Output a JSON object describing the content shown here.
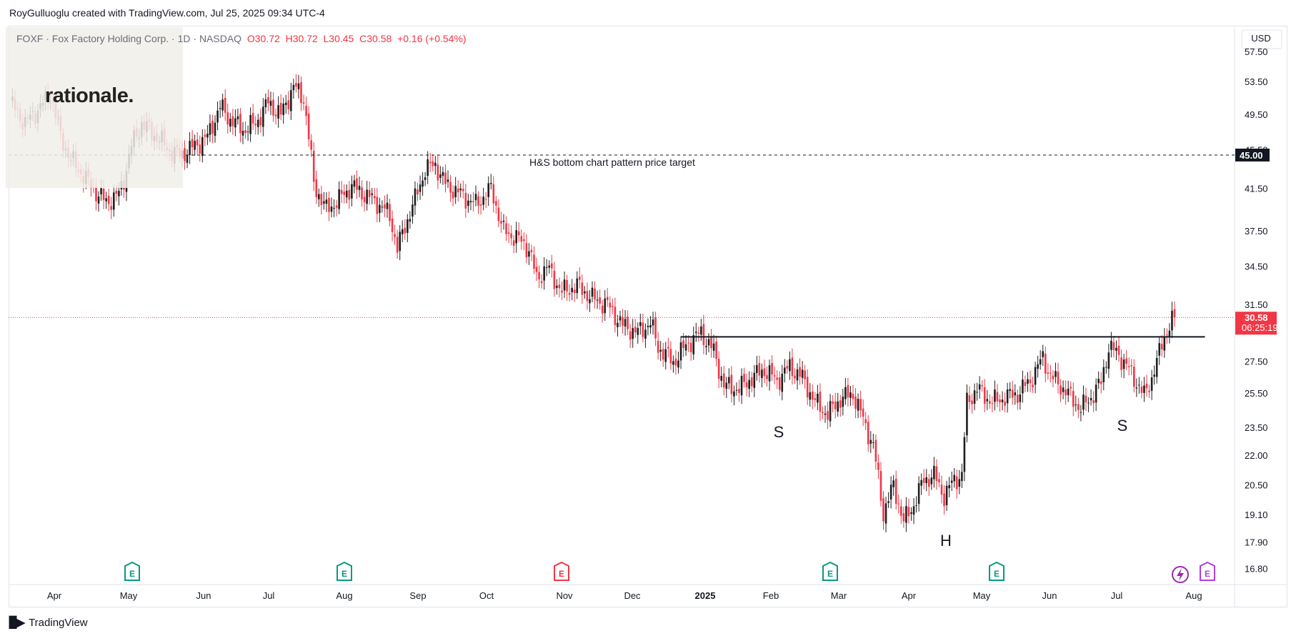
{
  "header": {
    "attribution": "RoyGulluoglu created with TradingView.com, Jul 25, 2025 09:34 UTC-4"
  },
  "legend": {
    "symbol": "FOXF · Fox Factory Holding Corp. · 1D · NASDAQ",
    "open": "O30.72",
    "high": "H30.72",
    "low": "L30.45",
    "close": "C30.58",
    "change": "+0.16 (+0.54%)"
  },
  "watermark": {
    "logo_text": "rationale."
  },
  "footer": {
    "brand": "TradingView"
  },
  "colors": {
    "up": "#1f1f1f",
    "down": "#f23645",
    "earnings_green": "#089981",
    "earnings_red": "#f23645",
    "price_tag": "#f23645"
  },
  "chart_data": {
    "type": "candlestick",
    "currency": "USD",
    "y_ticks": [
      57.5,
      53.5,
      49.5,
      45.5,
      41.5,
      37.5,
      34.5,
      31.5,
      27.5,
      25.5,
      23.5,
      22.0,
      20.5,
      19.1,
      17.9,
      16.8
    ],
    "y_tick_labels": [
      "57.50",
      "53.50",
      "49.50",
      "45.50",
      "41.50",
      "37.50",
      "34.50",
      "31.50",
      "27.50",
      "25.50",
      "23.50",
      "22.00",
      "20.50",
      "19.10",
      "17.90",
      "16.80"
    ],
    "ylim": [
      16.2,
      61.0
    ],
    "y_scale": "log",
    "x_labels": [
      "Apr",
      "May",
      "Jun",
      "Jul",
      "Aug",
      "Sep",
      "Oct",
      "Nov",
      "Dec",
      "2025",
      "Feb",
      "Mar",
      "Apr",
      "May",
      "Jun",
      "Jul",
      "Aug"
    ],
    "bold_x_labels": [
      "2025"
    ],
    "last_price": 30.58,
    "last_price_label": "30.58",
    "countdown": "06:25:19",
    "target_price": 45.0,
    "target_label": "45.00",
    "target_annotation": "H&S bottom chart pattern price target",
    "neckline_price": 29.2,
    "pattern_labels": [
      {
        "text": "S"
      },
      {
        "text": "H"
      },
      {
        "text": "S"
      }
    ],
    "earnings_markers": [
      {
        "label": "E",
        "type": "green",
        "month": "May"
      },
      {
        "label": "E",
        "type": "green",
        "month": "Aug"
      },
      {
        "label": "E",
        "type": "red",
        "month": "Nov"
      },
      {
        "label": "E",
        "type": "green",
        "month": "Mar"
      },
      {
        "label": "E",
        "type": "green",
        "month": "May"
      },
      {
        "label": "E",
        "type": "purple",
        "month": "Aug"
      }
    ],
    "price_path": [
      [
        0,
        51.0
      ],
      [
        6,
        48.5
      ],
      [
        12,
        50.5
      ],
      [
        16,
        52.0
      ],
      [
        20,
        47.0
      ],
      [
        24,
        44.5
      ],
      [
        28,
        43.2
      ],
      [
        33,
        41.5
      ],
      [
        38,
        40.2
      ],
      [
        43,
        41.0
      ],
      [
        45,
        42.5
      ],
      [
        48,
        46.0
      ],
      [
        52,
        48.5
      ],
      [
        58,
        47.0
      ],
      [
        63,
        45.5
      ],
      [
        67,
        45.0
      ],
      [
        72,
        45.8
      ],
      [
        78,
        47.0
      ],
      [
        83,
        50.5
      ],
      [
        87,
        49.0
      ],
      [
        92,
        47.8
      ],
      [
        97,
        48.5
      ],
      [
        102,
        51.0
      ],
      [
        107,
        49.5
      ],
      [
        112,
        53.0
      ],
      [
        116,
        51.5
      ],
      [
        118,
        47.0
      ],
      [
        120,
        42.0
      ],
      [
        125,
        39.5
      ],
      [
        130,
        40.5
      ],
      [
        135,
        41.8
      ],
      [
        140,
        41.0
      ],
      [
        145,
        40.2
      ],
      [
        150,
        39.0
      ],
      [
        153,
        36.0
      ],
      [
        156,
        38.0
      ],
      [
        160,
        40.5
      ],
      [
        164,
        43.5
      ],
      [
        168,
        44.0
      ],
      [
        172,
        42.0
      ],
      [
        178,
        41.0
      ],
      [
        184,
        40.0
      ],
      [
        188,
        41.0
      ],
      [
        190,
        41.5
      ],
      [
        195,
        37.5
      ],
      [
        200,
        37.0
      ],
      [
        205,
        36.0
      ],
      [
        208,
        33.5
      ],
      [
        212,
        34.5
      ],
      [
        218,
        32.5
      ],
      [
        224,
        33.0
      ],
      [
        230,
        32.0
      ],
      [
        236,
        31.5
      ],
      [
        242,
        30.0
      ],
      [
        248,
        29.5
      ],
      [
        253,
        30.2
      ],
      [
        256,
        28.5
      ],
      [
        262,
        27.5
      ],
      [
        268,
        28.8
      ],
      [
        273,
        29.5
      ],
      [
        278,
        28.2
      ],
      [
        282,
        26.0
      ],
      [
        288,
        25.8
      ],
      [
        293,
        26.5
      ],
      [
        298,
        27.0
      ],
      [
        303,
        26.3
      ],
      [
        308,
        27.2
      ],
      [
        313,
        26.5
      ],
      [
        318,
        25.0
      ],
      [
        323,
        24.3
      ],
      [
        328,
        25.2
      ],
      [
        333,
        25.5
      ],
      [
        337,
        24.0
      ],
      [
        341,
        22.5
      ],
      [
        345,
        19.2
      ],
      [
        349,
        20.5
      ],
      [
        353,
        18.8
      ],
      [
        357,
        19.6
      ],
      [
        361,
        20.8
      ],
      [
        365,
        21.0
      ],
      [
        369,
        20.0
      ],
      [
        373,
        20.8
      ],
      [
        376,
        21.0
      ],
      [
        378,
        25.0
      ],
      [
        382,
        25.8
      ],
      [
        388,
        25.0
      ],
      [
        393,
        25.3
      ],
      [
        398,
        25.5
      ],
      [
        403,
        26.3
      ],
      [
        408,
        27.8
      ],
      [
        411,
        26.6
      ],
      [
        415,
        26.0
      ],
      [
        419,
        25.3
      ],
      [
        423,
        24.6
      ],
      [
        427,
        25.3
      ],
      [
        431,
        26.2
      ],
      [
        434,
        28.5
      ],
      [
        438,
        28.0
      ],
      [
        442,
        27.0
      ],
      [
        445,
        26.2
      ],
      [
        448,
        25.4
      ],
      [
        451,
        26.5
      ],
      [
        453,
        27.5
      ],
      [
        456,
        29.3
      ],
      [
        458,
        30.0
      ],
      [
        460,
        30.58
      ]
    ]
  }
}
